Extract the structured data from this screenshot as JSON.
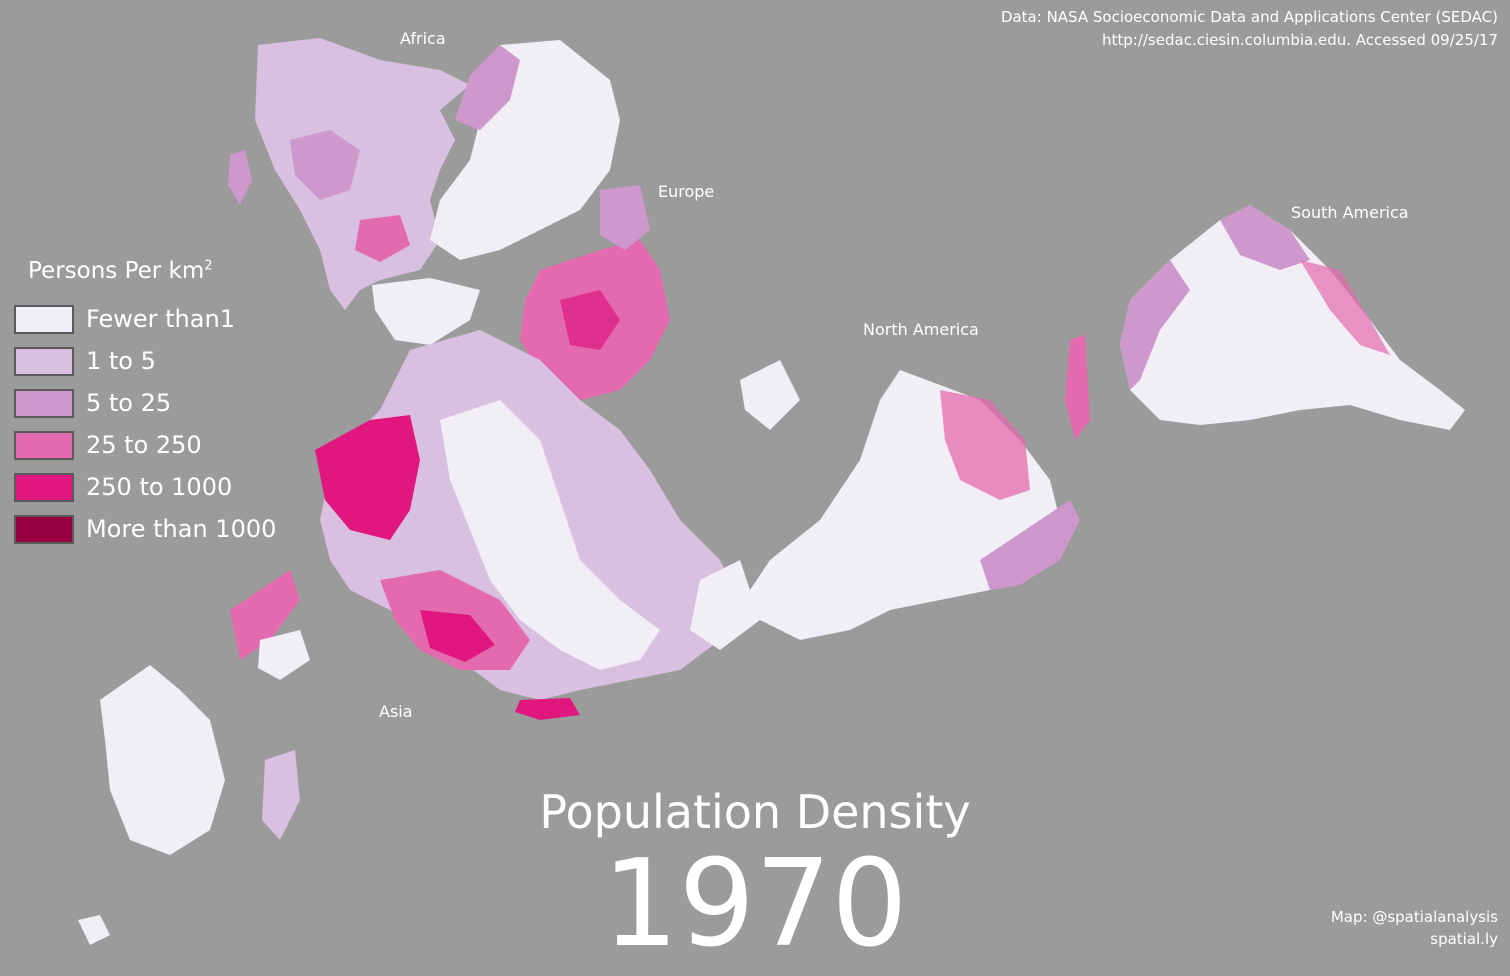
{
  "map": {
    "title": "Population Density",
    "year": "1970",
    "background_color": "#9b9b9b",
    "labels": {
      "africa": "Africa",
      "europe": "Europe",
      "north_america": "North America",
      "south_america": "South America",
      "asia": "Asia"
    }
  },
  "source": {
    "line1": "Data: NASA Socioeconomic Data and Applications Center (SEDAC)",
    "line2": "http://sedac.ciesin.columbia.edu.  Accessed 09/25/17"
  },
  "credit": {
    "line1": "Map: @spatialanalysis",
    "line2": "spatial.ly"
  },
  "legend": {
    "title": "Persons Per km",
    "title_superscript": "2",
    "items": [
      {
        "label": "Fewer than1",
        "color": "#f1eef6"
      },
      {
        "label": "1 to 5",
        "color": "#d9bfe0"
      },
      {
        "label": "5 to 25",
        "color": "#cf98cc"
      },
      {
        "label": "25 to 250",
        "color": "#e46aaf"
      },
      {
        "label": "250 to 1000",
        "color": "#e0177f"
      },
      {
        "label": "More than 1000",
        "color": "#980043"
      }
    ]
  }
}
